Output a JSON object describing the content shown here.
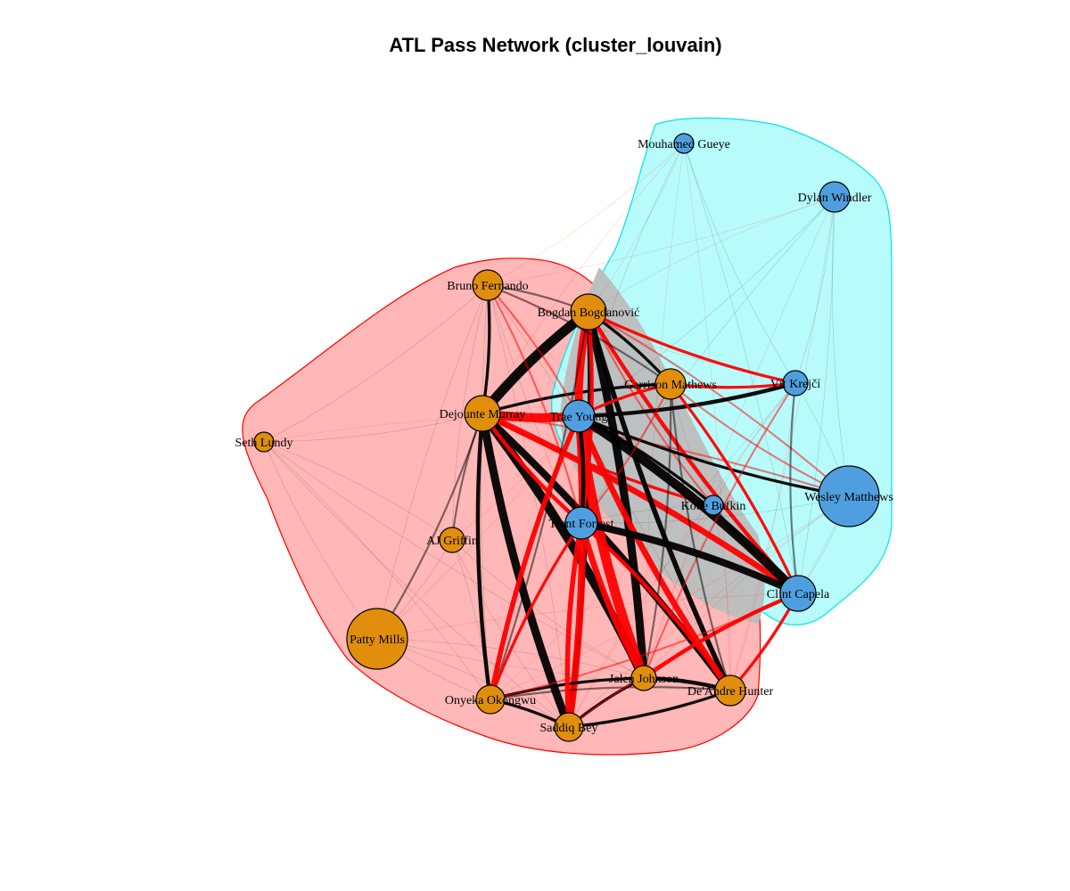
{
  "title": "ATL Pass Network (cluster_louvain)",
  "colors": {
    "community_1_fill": "#e08e0b",
    "community_2_fill": "#4f9fe0",
    "community_1_hull_fill": "#ffb3b3",
    "community_1_hull_stroke": "#ff0000",
    "community_2_hull_fill": "#b3fbfb",
    "community_2_hull_stroke": "#00e5e5",
    "within_community_edge": "#000000",
    "between_community_edge": "#ff0000"
  },
  "communities": [
    {
      "id": 1,
      "color_key": "community_1_fill",
      "members": [
        "Bruno Fernando",
        "Bogdan Bogdanović",
        "Garrison Mathews",
        "Dejounte Murray",
        "Seth Lundy",
        "AJ Griffin",
        "Patty Mills",
        "Onyeka Okongwu",
        "Saddiq Bey",
        "Jalen Johnson",
        "De'Andre Hunter"
      ]
    },
    {
      "id": 2,
      "color_key": "community_2_fill",
      "members": [
        "Mouhamed Gueye",
        "Dylan Windler",
        "Vít Krejčí",
        "Trae Young",
        "Kobe Bufkin",
        "Wesley Matthews",
        "Trent Forrest",
        "Clint Capela"
      ]
    }
  ],
  "nodes": [
    {
      "id": "gueye",
      "label": "Mouhamed Gueye",
      "community": 2,
      "size": "small"
    },
    {
      "id": "windler",
      "label": "Dylan Windler",
      "community": 2,
      "size": "medium"
    },
    {
      "id": "fernando",
      "label": "Bruno Fernando",
      "community": 1,
      "size": "medium"
    },
    {
      "id": "bogdanovic",
      "label": "Bogdan Bogdanović",
      "community": 1,
      "size": "medium"
    },
    {
      "id": "mathews",
      "label": "Garrison Mathews",
      "community": 1,
      "size": "medium"
    },
    {
      "id": "krejci",
      "label": "Vít Krejčí",
      "community": 2,
      "size": "small"
    },
    {
      "id": "murray",
      "label": "Dejounte Murray",
      "community": 1,
      "size": "medium"
    },
    {
      "id": "young",
      "label": "Trae Young",
      "community": 2,
      "size": "medium"
    },
    {
      "id": "lundy",
      "label": "Seth Lundy",
      "community": 1,
      "size": "small"
    },
    {
      "id": "matthews",
      "label": "Wesley Matthews",
      "community": 2,
      "size": "large"
    },
    {
      "id": "bufkin",
      "label": "Kobe Bufkin",
      "community": 2,
      "size": "small"
    },
    {
      "id": "forrest",
      "label": "Trent Forrest",
      "community": 2,
      "size": "medium"
    },
    {
      "id": "griffin",
      "label": "AJ Griffin",
      "community": 1,
      "size": "small"
    },
    {
      "id": "capela",
      "label": "Clint Capela",
      "community": 2,
      "size": "medium"
    },
    {
      "id": "mills",
      "label": "Patty Mills",
      "community": 1,
      "size": "large"
    },
    {
      "id": "johnson",
      "label": "Jalen Johnson",
      "community": 1,
      "size": "small"
    },
    {
      "id": "hunter",
      "label": "De'Andre Hunter",
      "community": 1,
      "size": "medium"
    },
    {
      "id": "okongwu",
      "label": "Onyeka Okongwu",
      "community": 1,
      "size": "small"
    },
    {
      "id": "bey",
      "label": "Saddiq Bey",
      "community": 1,
      "size": "small"
    }
  ],
  "edges": [
    {
      "source": "murray",
      "target": "bogdanovic",
      "weight": 9
    },
    {
      "source": "murray",
      "target": "young",
      "weight": 8
    },
    {
      "source": "murray",
      "target": "johnson",
      "weight": 8
    },
    {
      "source": "murray",
      "target": "bey",
      "weight": 7
    },
    {
      "source": "murray",
      "target": "hunter",
      "weight": 6
    },
    {
      "source": "murray",
      "target": "okongwu",
      "weight": 3
    },
    {
      "source": "murray",
      "target": "capela",
      "weight": 5
    },
    {
      "source": "murray",
      "target": "fernando",
      "weight": 2
    },
    {
      "source": "murray",
      "target": "mathews",
      "weight": 2
    },
    {
      "source": "murray",
      "target": "forrest",
      "weight": 3
    },
    {
      "source": "murray",
      "target": "mills",
      "weight": 1
    },
    {
      "source": "murray",
      "target": "griffin",
      "weight": 1
    },
    {
      "source": "murray",
      "target": "lundy",
      "weight": 0.5
    },
    {
      "source": "murray",
      "target": "bufkin",
      "weight": 2
    },
    {
      "source": "murray",
      "target": "matthews",
      "weight": 1
    },
    {
      "source": "bogdanovic",
      "target": "young",
      "weight": 7
    },
    {
      "source": "bogdanovic",
      "target": "johnson",
      "weight": 7
    },
    {
      "source": "bogdanovic",
      "target": "hunter",
      "weight": 4
    },
    {
      "source": "bogdanovic",
      "target": "bey",
      "weight": 3
    },
    {
      "source": "bogdanovic",
      "target": "capela",
      "weight": 3
    },
    {
      "source": "bogdanovic",
      "target": "forrest",
      "weight": 3
    },
    {
      "source": "bogdanovic",
      "target": "krejci",
      "weight": 2
    },
    {
      "source": "bogdanovic",
      "target": "mathews",
      "weight": 2
    },
    {
      "source": "bogdanovic",
      "target": "fernando",
      "weight": 1
    },
    {
      "source": "bogdanovic",
      "target": "matthews",
      "weight": 1
    },
    {
      "source": "bogdanovic",
      "target": "bufkin",
      "weight": 1
    },
    {
      "source": "bogdanovic",
      "target": "okongwu",
      "weight": 1
    },
    {
      "source": "young",
      "target": "johnson",
      "weight": 9
    },
    {
      "source": "young",
      "target": "bey",
      "weight": 6
    },
    {
      "source": "young",
      "target": "hunter",
      "weight": 5
    },
    {
      "source": "young",
      "target": "capela",
      "weight": 8
    },
    {
      "source": "young",
      "target": "okongwu",
      "weight": 4
    },
    {
      "source": "young",
      "target": "forrest",
      "weight": 3
    },
    {
      "source": "young",
      "target": "krejci",
      "weight": 3
    },
    {
      "source": "young",
      "target": "mathews",
      "weight": 2
    },
    {
      "source": "young",
      "target": "matthews",
      "weight": 2
    },
    {
      "source": "young",
      "target": "bufkin",
      "weight": 2
    },
    {
      "source": "young",
      "target": "fernando",
      "weight": 1
    },
    {
      "source": "johnson",
      "target": "hunter",
      "weight": 3
    },
    {
      "source": "johnson",
      "target": "bey",
      "weight": 2
    },
    {
      "source": "johnson",
      "target": "capela",
      "weight": 3
    },
    {
      "source": "johnson",
      "target": "okongwu",
      "weight": 2
    },
    {
      "source": "johnson",
      "target": "forrest",
      "weight": 5
    },
    {
      "source": "johnson",
      "target": "mathews",
      "weight": 1
    },
    {
      "source": "johnson",
      "target": "krejci",
      "weight": 1
    },
    {
      "source": "hunter",
      "target": "capela",
      "weight": 2
    },
    {
      "source": "hunter",
      "target": "bey",
      "weight": 2
    },
    {
      "source": "hunter",
      "target": "forrest",
      "weight": 3
    },
    {
      "source": "hunter",
      "target": "mathews",
      "weight": 1
    },
    {
      "source": "hunter",
      "target": "okongwu",
      "weight": 1
    },
    {
      "source": "bey",
      "target": "forrest",
      "weight": 4
    },
    {
      "source": "bey",
      "target": "okongwu",
      "weight": 2
    },
    {
      "source": "bey",
      "target": "capela",
      "weight": 1
    },
    {
      "source": "okongwu",
      "target": "capela",
      "weight": 1
    },
    {
      "source": "okongwu",
      "target": "forrest",
      "weight": 2
    },
    {
      "source": "capela",
      "target": "forrest",
      "weight": 6
    },
    {
      "source": "capela",
      "target": "krejci",
      "weight": 1
    },
    {
      "source": "capela",
      "target": "mathews",
      "weight": 2
    },
    {
      "source": "capela",
      "target": "bufkin",
      "weight": 1
    },
    {
      "source": "capela",
      "target": "matthews",
      "weight": 0.5
    },
    {
      "source": "fernando",
      "target": "mathews",
      "weight": 1
    },
    {
      "source": "fernando",
      "target": "krejci",
      "weight": 0.5
    },
    {
      "source": "fernando",
      "target": "forrest",
      "weight": 1
    },
    {
      "source": "mathews",
      "target": "krejci",
      "weight": 2
    },
    {
      "source": "mathews",
      "target": "forrest",
      "weight": 1
    },
    {
      "source": "mathews",
      "target": "matthews",
      "weight": 1
    },
    {
      "source": "krejci",
      "target": "matthews",
      "weight": 0.5
    },
    {
      "source": "krejci",
      "target": "bufkin",
      "weight": 0.5
    },
    {
      "source": "forrest",
      "target": "bufkin",
      "weight": 0.5
    },
    {
      "source": "forrest",
      "target": "matthews",
      "weight": 0.5
    },
    {
      "source": "gueye",
      "target": "bogdanovic",
      "weight": 0.4
    },
    {
      "source": "gueye",
      "target": "young",
      "weight": 0.4
    },
    {
      "source": "gueye",
      "target": "capela",
      "weight": 0.3
    },
    {
      "source": "gueye",
      "target": "johnson",
      "weight": 0.3
    },
    {
      "source": "gueye",
      "target": "hunter",
      "weight": 0.3
    },
    {
      "source": "gueye",
      "target": "murray",
      "weight": 0.3
    },
    {
      "source": "gueye",
      "target": "fernando",
      "weight": 0.2
    },
    {
      "source": "gueye",
      "target": "krejci",
      "weight": 0.2
    },
    {
      "source": "windler",
      "target": "young",
      "weight": 0.4
    },
    {
      "source": "windler",
      "target": "bogdanovic",
      "weight": 0.3
    },
    {
      "source": "windler",
      "target": "capela",
      "weight": 0.3
    },
    {
      "source": "windler",
      "target": "johnson",
      "weight": 0.3
    },
    {
      "source": "windler",
      "target": "krejci",
      "weight": 0.3
    },
    {
      "source": "windler",
      "target": "matthews",
      "weight": 0.3
    },
    {
      "source": "windler",
      "target": "hunter",
      "weight": 0.2
    },
    {
      "source": "windler",
      "target": "forrest",
      "weight": 0.2
    },
    {
      "source": "windler",
      "target": "fernando",
      "weight": 0.2
    },
    {
      "source": "lundy",
      "target": "fernando",
      "weight": 0.3
    },
    {
      "source": "lundy",
      "target": "young",
      "weight": 0.3
    },
    {
      "source": "lundy",
      "target": "mills",
      "weight": 0.2
    },
    {
      "source": "lundy",
      "target": "okongwu",
      "weight": 0.2
    },
    {
      "source": "lundy",
      "target": "bey",
      "weight": 0.2
    },
    {
      "source": "lundy",
      "target": "griffin",
      "weight": 0.2
    },
    {
      "source": "lundy",
      "target": "johnson",
      "weight": 0.2
    },
    {
      "source": "griffin",
      "target": "fernando",
      "weight": 0.5
    },
    {
      "source": "griffin",
      "target": "young",
      "weight": 0.5
    },
    {
      "source": "griffin",
      "target": "okongwu",
      "weight": 0.3
    },
    {
      "source": "griffin",
      "target": "bey",
      "weight": 0.3
    },
    {
      "source": "griffin",
      "target": "mills",
      "weight": 0.3
    },
    {
      "source": "griffin",
      "target": "johnson",
      "weight": 0.3
    },
    {
      "source": "mills",
      "target": "fernando",
      "weight": 0.5
    },
    {
      "source": "mills",
      "target": "okongwu",
      "weight": 0.4
    },
    {
      "source": "mills",
      "target": "bey",
      "weight": 0.4
    },
    {
      "source": "mills",
      "target": "young",
      "weight": 0.4
    },
    {
      "source": "mills",
      "target": "johnson",
      "weight": 0.3
    },
    {
      "source": "mills",
      "target": "hunter",
      "weight": 0.3
    },
    {
      "source": "mills",
      "target": "capela",
      "weight": 0.2
    },
    {
      "source": "fernando",
      "target": "okongwu",
      "weight": 0.4
    },
    {
      "source": "fernando",
      "target": "bey",
      "weight": 0.4
    },
    {
      "source": "fernando",
      "target": "johnson",
      "weight": 0.5
    },
    {
      "source": "fernando",
      "target": "hunter",
      "weight": 0.4
    },
    {
      "source": "fernando",
      "target": "capela",
      "weight": 0.4
    },
    {
      "source": "krejci",
      "target": "okongwu",
      "weight": 0.4
    },
    {
      "source": "krejci",
      "target": "bey",
      "weight": 0.4
    },
    {
      "source": "krejci",
      "target": "hunter",
      "weight": 0.5
    },
    {
      "source": "matthews",
      "target": "johnson",
      "weight": 0.5
    },
    {
      "source": "matthews",
      "target": "hunter",
      "weight": 0.4
    },
    {
      "source": "matthews",
      "target": "bey",
      "weight": 0.4
    },
    {
      "source": "matthews",
      "target": "okongwu",
      "weight": 0.3
    },
    {
      "source": "bufkin",
      "target": "johnson",
      "weight": 0.5
    },
    {
      "source": "bufkin",
      "target": "hunter",
      "weight": 0.5
    },
    {
      "source": "bufkin",
      "target": "bey",
      "weight": 0.4
    },
    {
      "source": "bufkin",
      "target": "mathews",
      "weight": 0.4
    }
  ]
}
